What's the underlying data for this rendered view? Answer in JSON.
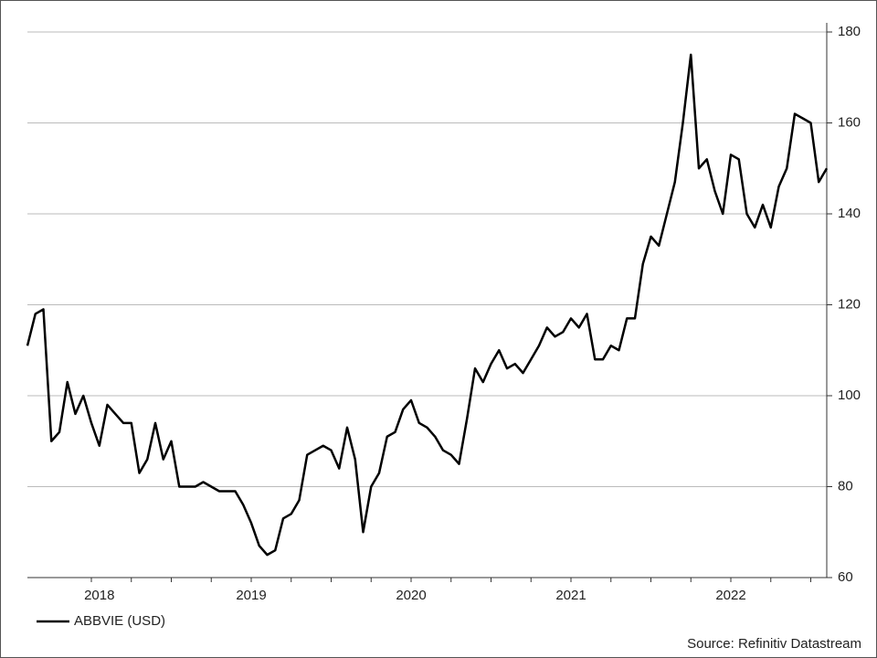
{
  "chart_data": {
    "type": "line",
    "categories": [
      null,
      null,
      null,
      null,
      null,
      null,
      null,
      null,
      null,
      "2018",
      null,
      null,
      null,
      null,
      null,
      null,
      null,
      null,
      null,
      null,
      null,
      null,
      null,
      null,
      null,
      null,
      null,
      null,
      "2019",
      null,
      null,
      null,
      null,
      null,
      null,
      null,
      null,
      null,
      null,
      null,
      null,
      null,
      null,
      null,
      null,
      null,
      null,
      null,
      "2020",
      null,
      null,
      null,
      null,
      null,
      null,
      null,
      null,
      null,
      null,
      null,
      null,
      null,
      null,
      null,
      null,
      null,
      null,
      null,
      "2021",
      null,
      null,
      null,
      null,
      null,
      null,
      null,
      null,
      null,
      null,
      null,
      null,
      null,
      null,
      null,
      null,
      null,
      null,
      null,
      "2022",
      null,
      null,
      null,
      null,
      null,
      null,
      null,
      null,
      null,
      null,
      null,
      null
    ],
    "series": [
      {
        "name": "ABBVIE (USD)",
        "color": "#000000",
        "values": [
          111,
          118,
          119,
          90,
          92,
          103,
          96,
          100,
          94,
          89,
          98,
          96,
          94,
          94,
          83,
          86,
          94,
          86,
          90,
          80,
          80,
          80,
          81,
          80,
          79,
          79,
          79,
          76,
          72,
          67,
          65,
          66,
          73,
          74,
          77,
          87,
          88,
          89,
          88,
          84,
          93,
          86,
          70,
          80,
          83,
          91,
          92,
          97,
          99,
          94,
          93,
          91,
          88,
          87,
          85,
          95,
          106,
          103,
          107,
          110,
          106,
          107,
          105,
          108,
          111,
          115,
          113,
          114,
          117,
          115,
          118,
          108,
          108,
          111,
          110,
          117,
          117,
          129,
          135,
          133,
          140,
          147,
          160,
          175,
          150,
          152,
          145,
          140,
          153,
          152,
          140,
          137,
          142,
          137,
          146,
          150,
          162,
          161,
          160,
          147,
          150
        ]
      }
    ],
    "ylim": [
      60,
      180
    ],
    "yticks": [
      60,
      80,
      100,
      120,
      140,
      160,
      180
    ],
    "grid": true,
    "source": "Source: Refinitiv Datastream"
  }
}
